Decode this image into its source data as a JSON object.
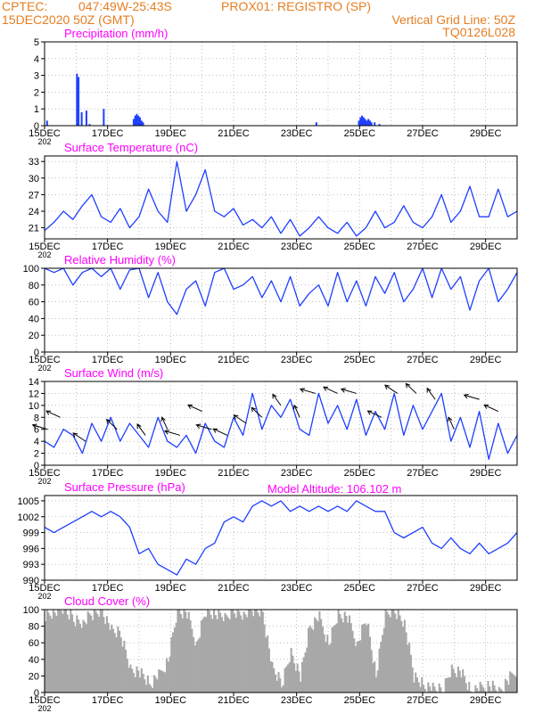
{
  "header": {
    "source": "CPTEC:",
    "coords": "047:49W-25:43S",
    "location": "PROX01: REGISTRO (SP)",
    "init_time": "15DEC2020 50Z (GMT)",
    "grid_note": "Vertical Grid Line: 50Z",
    "model_code": "TQ0126L028",
    "model_altitude": "Model Altitude: 106.102 m"
  },
  "colors": {
    "header": "#e67e22",
    "title": "#ff00ff",
    "line": "#1f3fff",
    "bar": "#1f3fff",
    "cloud": "#a8a8a8",
    "grid": "#9a9a9a",
    "wind_arrow": "#000000"
  },
  "x_axis": {
    "tick_labels": [
      "15DEC",
      "17DEC",
      "19DEC",
      "21DEC",
      "23DEC",
      "25DEC",
      "27DEC",
      "29DEC"
    ],
    "year_fragment": "202",
    "range_days": [
      0,
      15
    ]
  },
  "chart_data": [
    {
      "type": "bar",
      "title": "Precipitation (mm/h)",
      "ylim": [
        0,
        5
      ],
      "yticks": [
        "0",
        "1",
        "2",
        "3",
        "4",
        "5"
      ],
      "x": [
        0.05,
        1.0,
        1.05,
        1.15,
        1.3,
        1.4,
        1.85,
        2.8,
        2.85,
        2.9,
        2.95,
        3.0,
        3.05,
        3.1,
        8.6,
        9.95,
        10.0,
        10.05,
        10.1,
        10.15,
        10.2,
        10.25,
        10.3,
        10.35,
        10.45,
        10.6
      ],
      "values": [
        0.3,
        3.1,
        2.9,
        0.8,
        0.9,
        0.1,
        1.0,
        0.4,
        0.6,
        0.7,
        0.6,
        0.5,
        0.3,
        0.2,
        0.2,
        0.3,
        0.5,
        0.6,
        0.5,
        0.4,
        0.3,
        0.4,
        0.3,
        0.2,
        0.2,
        0.1
      ]
    },
    {
      "type": "line",
      "title": "Surface Temperature (nC)",
      "ylim": [
        19,
        34
      ],
      "yticks": [
        "21",
        "24",
        "27",
        "30",
        "33"
      ],
      "x": [
        0,
        0.3,
        0.6,
        0.9,
        1.2,
        1.5,
        1.8,
        2.1,
        2.4,
        2.7,
        3.0,
        3.3,
        3.6,
        3.9,
        4.2,
        4.5,
        4.8,
        5.1,
        5.4,
        5.7,
        6.0,
        6.3,
        6.6,
        6.9,
        7.2,
        7.5,
        7.8,
        8.1,
        8.4,
        8.7,
        9.0,
        9.3,
        9.6,
        9.9,
        10.2,
        10.5,
        10.8,
        11.1,
        11.4,
        11.7,
        12.0,
        12.3,
        12.6,
        12.9,
        13.2,
        13.5,
        13.8,
        14.1,
        14.4,
        14.7,
        15.0
      ],
      "values": [
        20.5,
        22,
        24,
        22.5,
        25,
        27,
        23,
        22,
        24.5,
        21,
        23,
        28,
        24,
        22,
        33,
        24,
        27,
        31.5,
        24,
        23,
        24.5,
        21.5,
        22.5,
        21,
        23,
        20,
        22.5,
        19.5,
        21,
        23,
        21,
        20,
        22,
        19.5,
        21,
        24,
        21,
        22,
        25,
        22,
        21,
        23,
        27,
        22,
        24,
        28.5,
        23,
        23,
        28,
        23,
        24
      ]
    },
    {
      "type": "line",
      "title": "Relative Humidity (%)",
      "ylim": [
        0,
        100
      ],
      "yticks": [
        "0",
        "20",
        "40",
        "60",
        "80",
        "100"
      ],
      "x": [
        0,
        0.3,
        0.6,
        0.9,
        1.2,
        1.5,
        1.8,
        2.1,
        2.4,
        2.7,
        3.0,
        3.3,
        3.6,
        3.9,
        4.2,
        4.5,
        4.8,
        5.1,
        5.4,
        5.7,
        6.0,
        6.3,
        6.6,
        6.9,
        7.2,
        7.5,
        7.8,
        8.1,
        8.4,
        8.7,
        9.0,
        9.3,
        9.6,
        9.9,
        10.2,
        10.5,
        10.8,
        11.1,
        11.4,
        11.7,
        12.0,
        12.3,
        12.6,
        12.9,
        13.2,
        13.5,
        13.8,
        14.1,
        14.4,
        14.7,
        15.0
      ],
      "values": [
        100,
        95,
        100,
        80,
        95,
        100,
        90,
        100,
        75,
        98,
        100,
        65,
        95,
        60,
        45,
        75,
        85,
        55,
        95,
        100,
        75,
        80,
        90,
        65,
        85,
        60,
        90,
        55,
        70,
        80,
        55,
        95,
        60,
        85,
        55,
        90,
        70,
        95,
        60,
        75,
        100,
        65,
        100,
        75,
        90,
        50,
        85,
        100,
        60,
        75,
        95
      ]
    },
    {
      "type": "line",
      "title": "Surface Wind (m/s)",
      "ylim": [
        0,
        14
      ],
      "yticks": [
        "0",
        "2",
        "4",
        "6",
        "8",
        "10",
        "12",
        "14"
      ],
      "x": [
        0,
        0.3,
        0.6,
        0.9,
        1.2,
        1.5,
        1.8,
        2.1,
        2.4,
        2.7,
        3.0,
        3.3,
        3.6,
        3.9,
        4.2,
        4.5,
        4.8,
        5.1,
        5.4,
        5.7,
        6.0,
        6.3,
        6.6,
        6.9,
        7.2,
        7.5,
        7.8,
        8.1,
        8.4,
        8.7,
        9.0,
        9.3,
        9.6,
        9.9,
        10.2,
        10.5,
        10.8,
        11.1,
        11.4,
        11.7,
        12.0,
        12.3,
        12.6,
        12.9,
        13.2,
        13.5,
        13.8,
        14.1,
        14.4,
        14.7,
        15.0
      ],
      "values": [
        4,
        3,
        6,
        5,
        2,
        7,
        4,
        8,
        4,
        7,
        5,
        3,
        8,
        4,
        3,
        5,
        2,
        7,
        4,
        3,
        8,
        5,
        12,
        6,
        10,
        8,
        11,
        6,
        5,
        12,
        7,
        10,
        6,
        11,
        5,
        9,
        6,
        12,
        5,
        10,
        6,
        9,
        12,
        4,
        8,
        3,
        9,
        1,
        7,
        2,
        5
      ],
      "arrows_x": [
        0.1,
        0.5,
        1.3,
        2.3,
        3.2,
        3.9,
        4.3,
        5.0,
        5.3,
        5.8,
        6.4,
        6.9,
        7.5,
        8.1,
        8.6,
        9.3,
        9.9,
        10.7,
        11.2,
        11.8,
        12.4,
        13.0,
        13.8,
        14.4
      ]
    },
    {
      "type": "line",
      "title": "Surface Pressure (hPa)",
      "ylim": [
        990,
        1006
      ],
      "yticks": [
        "990",
        "993",
        "996",
        "999",
        "1002",
        "1005"
      ],
      "x": [
        0,
        0.3,
        0.6,
        0.9,
        1.2,
        1.5,
        1.8,
        2.1,
        2.4,
        2.7,
        3.0,
        3.3,
        3.6,
        3.9,
        4.2,
        4.5,
        4.8,
        5.1,
        5.4,
        5.7,
        6.0,
        6.3,
        6.6,
        6.9,
        7.2,
        7.5,
        7.8,
        8.1,
        8.4,
        8.7,
        9.0,
        9.3,
        9.6,
        9.9,
        10.2,
        10.5,
        10.8,
        11.1,
        11.4,
        11.7,
        12.0,
        12.3,
        12.6,
        12.9,
        13.2,
        13.5,
        13.8,
        14.1,
        14.4,
        14.7,
        15.0
      ],
      "values": [
        1000,
        999,
        1000,
        1001,
        1002,
        1003,
        1002,
        1003,
        1002,
        1000,
        995,
        996,
        993,
        992,
        991,
        994,
        993,
        996,
        997,
        1001,
        1002,
        1001,
        1004,
        1005,
        1004,
        1005,
        1003,
        1004,
        1003,
        1004,
        1003,
        1004,
        1003,
        1005,
        1004,
        1003,
        1003,
        999,
        998,
        999,
        1000,
        997,
        996,
        998,
        996,
        995,
        997,
        995,
        996,
        997,
        999
      ]
    },
    {
      "type": "area",
      "title": "Cloud Cover (%)",
      "ylim": [
        0,
        100
      ],
      "yticks": [
        "0",
        "20",
        "40",
        "60",
        "80",
        "100"
      ],
      "x": [
        0,
        0.3,
        0.6,
        0.9,
        1.2,
        1.5,
        1.8,
        2.1,
        2.4,
        2.7,
        3.0,
        3.3,
        3.6,
        3.9,
        4.2,
        4.5,
        4.8,
        5.1,
        5.4,
        5.7,
        6.0,
        6.3,
        6.6,
        6.9,
        7.2,
        7.5,
        7.8,
        8.1,
        8.4,
        8.7,
        9.0,
        9.3,
        9.6,
        9.9,
        10.2,
        10.5,
        10.8,
        11.1,
        11.4,
        11.7,
        12.0,
        12.3,
        12.6,
        12.9,
        13.2,
        13.5,
        13.8,
        14.1,
        14.4,
        14.7,
        15.0
      ],
      "values": [
        95,
        98,
        100,
        90,
        85,
        95,
        100,
        75,
        70,
        30,
        25,
        10,
        20,
        40,
        100,
        95,
        60,
        100,
        95,
        90,
        100,
        95,
        100,
        98,
        30,
        10,
        50,
        20,
        80,
        90,
        60,
        95,
        90,
        60,
        90,
        20,
        95,
        100,
        85,
        20,
        10,
        5,
        2,
        30,
        25,
        1,
        5,
        10,
        2,
        15,
        30
      ]
    }
  ]
}
